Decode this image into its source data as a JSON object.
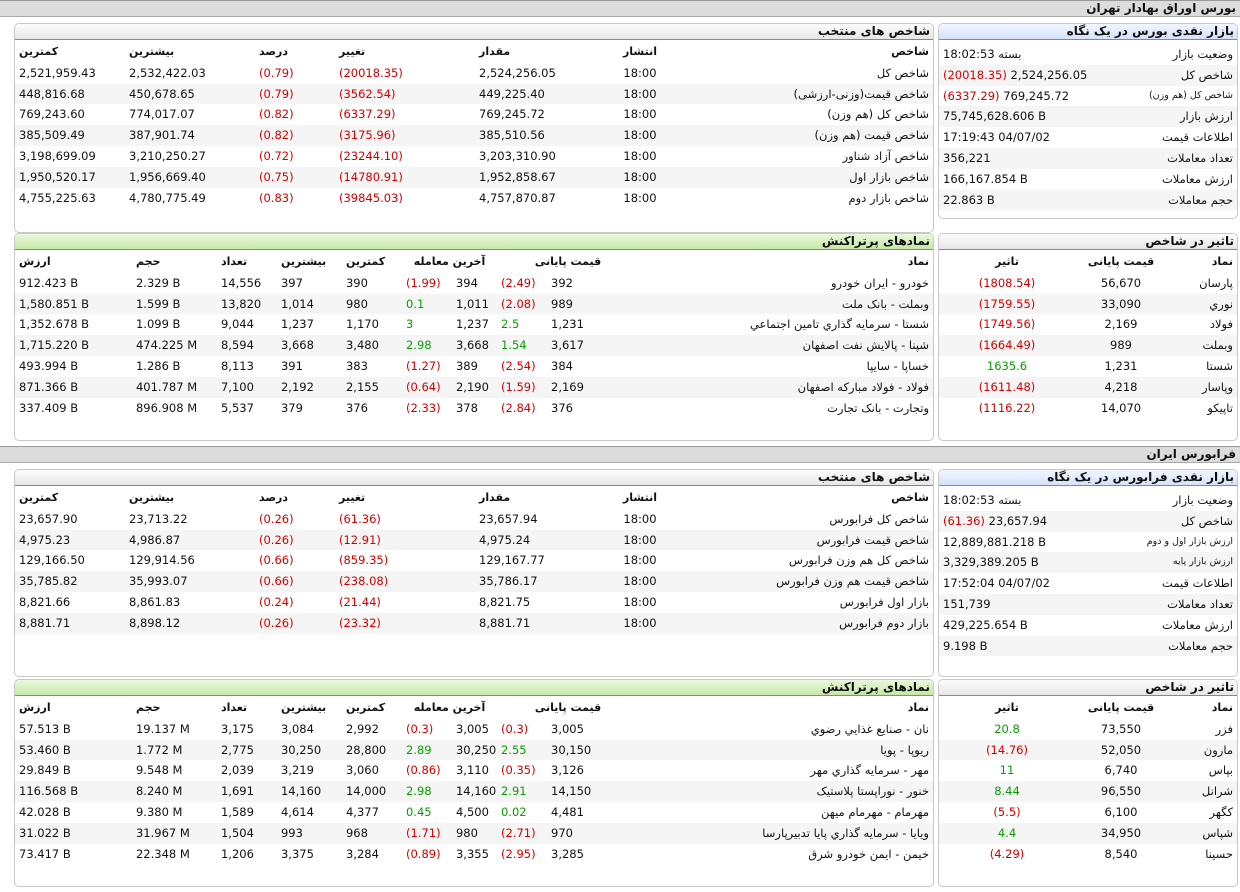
{
  "tse": {
    "section_title": "بورس اوراق بهادار تهران",
    "glance": {
      "title": "بازار نقدی بورس در یک نگاه",
      "rows": [
        {
          "label": "وضعیت بازار",
          "value": "بسته 18:02:53",
          "change": ""
        },
        {
          "label": "شاخص کل",
          "value": "2,524,256.05",
          "change": "(20018.35)"
        },
        {
          "label": "شاخص کل (هم وزن)",
          "value": "769,245.72",
          "change": "(6337.29)"
        },
        {
          "label": "ارزش بازار",
          "value": "75,745,628.606 B",
          "change": ""
        },
        {
          "label": "اطلاعات قیمت",
          "value": "17:19:43 04/07/02",
          "change": ""
        },
        {
          "label": "تعداد معاملات",
          "value": "356,221",
          "change": ""
        },
        {
          "label": "ارزش معاملات",
          "value": "166,167.854 B",
          "change": ""
        },
        {
          "label": "حجم معاملات",
          "value": "22.863 B",
          "change": ""
        }
      ]
    },
    "indices": {
      "title": "شاخص های منتخب",
      "headers": [
        "شاخص",
        "انتشار",
        "مقدار",
        "تغییر",
        "درصد",
        "بیشترین",
        "کمترین"
      ],
      "rows": [
        [
          "شاخص کل",
          "18:00",
          "2,524,256.05",
          "(20018.35)",
          "(0.79)",
          "2,532,422.03",
          "2,521,959.43"
        ],
        [
          "شاخص قیمت(وزنی-ارزشی)",
          "18:00",
          "449,225.40",
          "(3562.54)",
          "(0.79)",
          "450,678.65",
          "448,816.68"
        ],
        [
          "شاخص کل (هم وزن)",
          "18:00",
          "769,245.72",
          "(6337.29)",
          "(0.82)",
          "774,017.07",
          "769,243.60"
        ],
        [
          "شاخص قیمت (هم وزن)",
          "18:00",
          "385,510.56",
          "(3175.96)",
          "(0.82)",
          "387,901.74",
          "385,509.49"
        ],
        [
          "شاخص آزاد شناور",
          "18:00",
          "3,203,310.90",
          "(23244.10)",
          "(0.72)",
          "3,210,250.27",
          "3,198,699.09"
        ],
        [
          "شاخص بازار اول",
          "18:00",
          "1,952,858.67",
          "(14780.91)",
          "(0.75)",
          "1,956,669.40",
          "1,950,520.17"
        ],
        [
          "شاخص بازار دوم",
          "18:00",
          "4,757,870.87",
          "(39845.03)",
          "(0.83)",
          "4,780,775.49",
          "4,755,225.63"
        ]
      ]
    },
    "impact": {
      "title": "تاثیر در شاخص",
      "headers": [
        "نماد",
        "قیمت پایانی",
        "تاثیر"
      ],
      "rows": [
        [
          "پارسان",
          "56,670",
          "(1808.54)"
        ],
        [
          "نوري",
          "33,090",
          "(1759.55)"
        ],
        [
          "فولاد",
          "2,169",
          "(1749.56)"
        ],
        [
          "وبملت",
          "989",
          "(1664.49)"
        ],
        [
          "شستا",
          "1,231",
          "1635.6"
        ],
        [
          "وپاسار",
          "4,218",
          "(1611.48)"
        ],
        [
          "تاپیکو",
          "14,070",
          "(1116.22)"
        ]
      ]
    },
    "active": {
      "title": "نمادهای پرتراکنش",
      "headers": [
        "نماد",
        "قیمت پایانی",
        "آخرین معامله",
        "کمترین",
        "بیشترین",
        "تعداد",
        "حجم",
        "ارزش"
      ],
      "rows": [
        [
          "خودرو - ایران خودرو",
          "392",
          "(2.49)",
          "394",
          "(1.99)",
          "390",
          "397",
          "14,556",
          "2.329 B",
          "912.423 B"
        ],
        [
          "وبملت - بانک ملت",
          "989",
          "(2.08)",
          "1,011",
          "0.1",
          "980",
          "1,014",
          "13,820",
          "1.599 B",
          "1,580.851 B"
        ],
        [
          "شستا - سرمایه گذاري تامین اجتماعي",
          "1,231",
          "2.5",
          "1,237",
          "3",
          "1,170",
          "1,237",
          "9,044",
          "1.099 B",
          "1,352.678 B"
        ],
        [
          "شپنا - پالایش نفت اصفهان",
          "3,617",
          "1.54",
          "3,668",
          "2.98",
          "3,480",
          "3,668",
          "8,594",
          "474.225 M",
          "1,715.220 B"
        ],
        [
          "خساپا - سایپا",
          "384",
          "(2.54)",
          "389",
          "(1.27)",
          "383",
          "391",
          "8,113",
          "1.286 B",
          "493.994 B"
        ],
        [
          "فولاد - فولاد مبارکه اصفهان",
          "2,169",
          "(1.59)",
          "2,190",
          "(0.64)",
          "2,155",
          "2,192",
          "7,100",
          "401.787 M",
          "871.366 B"
        ],
        [
          "وتجارت - بانک تجارت",
          "376",
          "(2.84)",
          "378",
          "(2.33)",
          "376",
          "379",
          "5,537",
          "896.908 M",
          "337.409 B"
        ]
      ]
    }
  },
  "ifb": {
    "section_title": "فرابورس ایران",
    "glance": {
      "title": "بازار نقدی فرابورس در یک نگاه",
      "rows": [
        {
          "label": "وضعیت بازار",
          "value": "بسته 18:02:53",
          "change": ""
        },
        {
          "label": "شاخص کل",
          "value": "23,657.94",
          "change": "(61.36)"
        },
        {
          "label": "ارزش بازار اول و دوم",
          "value": "12,889,881.218 B",
          "change": ""
        },
        {
          "label": "ارزش بازار پایه",
          "value": "3,329,389.205 B",
          "change": ""
        },
        {
          "label": "اطلاعات قیمت",
          "value": "17:52:04 04/07/02",
          "change": ""
        },
        {
          "label": "تعداد معاملات",
          "value": "151,739",
          "change": ""
        },
        {
          "label": "ارزش معاملات",
          "value": "429,225.654 B",
          "change": ""
        },
        {
          "label": "حجم معاملات",
          "value": "9.198 B",
          "change": ""
        }
      ]
    },
    "indices": {
      "title": "شاخص های منتخب",
      "headers": [
        "شاخص",
        "انتشار",
        "مقدار",
        "تغییر",
        "درصد",
        "بیشترین",
        "کمترین"
      ],
      "rows": [
        [
          "شاخص کل فرابورس",
          "18:00",
          "23,657.94",
          "(61.36)",
          "(0.26)",
          "23,713.22",
          "23,657.90"
        ],
        [
          "شاخص قیمت فرابورس",
          "18:00",
          "4,975.24",
          "(12.91)",
          "(0.26)",
          "4,986.87",
          "4,975.23"
        ],
        [
          "شاخص کل هم وزن فرابورس",
          "18:00",
          "129,167.77",
          "(859.35)",
          "(0.66)",
          "129,914.56",
          "129,166.50"
        ],
        [
          "شاخص قیمت هم وزن فرابورس",
          "18:00",
          "35,786.17",
          "(238.08)",
          "(0.66)",
          "35,993.07",
          "35,785.82"
        ],
        [
          "بازار اول فرابورس",
          "18:00",
          "8,821.75",
          "(21.44)",
          "(0.24)",
          "8,861.83",
          "8,821.66"
        ],
        [
          "بازار دوم فرابورس",
          "18:00",
          "8,881.71",
          "(23.32)",
          "(0.26)",
          "8,898.12",
          "8,881.71"
        ]
      ]
    },
    "impact": {
      "title": "تاثیر در شاخص",
      "headers": [
        "نماد",
        "قیمت پایانی",
        "تاثیر"
      ],
      "rows": [
        [
          "فزر",
          "73,550",
          "20.8"
        ],
        [
          "مارون",
          "52,050",
          "(14.76)"
        ],
        [
          "بپاس",
          "6,740",
          "11"
        ],
        [
          "شرانل",
          "96,550",
          "8.44"
        ],
        [
          "کگهر",
          "6,100",
          "(5.5)"
        ],
        [
          "شپاس",
          "34,950",
          "4.4"
        ],
        [
          "حسینا",
          "8,540",
          "(4.29)"
        ]
      ]
    },
    "active": {
      "title": "نمادهای پرتراکنش",
      "headers": [
        "نماد",
        "قیمت پایانی",
        "آخرین معامله",
        "کمترین",
        "بیشترین",
        "تعداد",
        "حجم",
        "ارزش"
      ],
      "rows": [
        [
          "نان - صنایع غذایي رضوي",
          "3,005",
          "(0.3)",
          "3,005",
          "(0.3)",
          "2,992",
          "3,084",
          "3,175",
          "19.137 M",
          "57.513 B"
        ],
        [
          "ریوپا - پویا",
          "30,150",
          "2.55",
          "30,250",
          "2.89",
          "28,800",
          "30,250",
          "2,775",
          "1.772 M",
          "53.460 B"
        ],
        [
          "مهر - سرمایه گذاري مهر",
          "3,126",
          "(0.35)",
          "3,110",
          "(0.86)",
          "3,060",
          "3,219",
          "2,039",
          "9.548 M",
          "29.849 B"
        ],
        [
          "خنور - نوراپستا پلاستیک",
          "14,150",
          "2.91",
          "14,160",
          "2.98",
          "14,000",
          "14,160",
          "1,691",
          "8.240 M",
          "116.568 B"
        ],
        [
          "مهرمام - مهرمام میهن",
          "4,481",
          "0.02",
          "4,500",
          "0.45",
          "4,377",
          "4,614",
          "1,589",
          "9.380 M",
          "42.028 B"
        ],
        [
          "ویایا - سرمایه گذاري پایا تدبیرپارسا",
          "970",
          "(2.71)",
          "980",
          "(1.71)",
          "968",
          "993",
          "1,504",
          "31.967 M",
          "31.022 B"
        ],
        [
          "خیمن - ایمن خودرو شرق",
          "3,285",
          "(2.95)",
          "3,355",
          "(0.89)",
          "3,284",
          "3,375",
          "1,206",
          "22.348 M",
          "73.417 B"
        ]
      ]
    }
  }
}
